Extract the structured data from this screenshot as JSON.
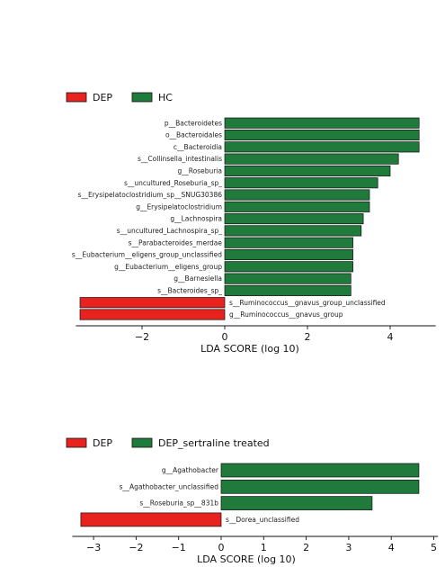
{
  "chart_data": [
    {
      "type": "bar",
      "orientation": "horizontal",
      "legend": [
        {
          "name": "DEP",
          "color": "#e8231f"
        },
        {
          "name": "HC",
          "color": "#1f7a3c"
        }
      ],
      "legend_position": "top-left",
      "xlabel": "LDA SCORE (log 10)",
      "xlim": [
        -3.6,
        5.1
      ],
      "xticks": [
        -2,
        0,
        2,
        4
      ],
      "xtick_labels": [
        "−2",
        "0",
        "2",
        "4"
      ],
      "grid": false,
      "bars": [
        {
          "label": "p__Bacteroidetes",
          "value": 4.7,
          "group": "HC"
        },
        {
          "label": "o__Bacteroidales",
          "value": 4.7,
          "group": "HC"
        },
        {
          "label": "c__Bacteroidia",
          "value": 4.7,
          "group": "HC"
        },
        {
          "label": "s__Collinsella_intestinalis",
          "value": 4.2,
          "group": "HC"
        },
        {
          "label": "g__Roseburia",
          "value": 4.0,
          "group": "HC"
        },
        {
          "label": "s__uncultured_Roseburia_sp_",
          "value": 3.7,
          "group": "HC"
        },
        {
          "label": "s__Erysipelatoclostridium_sp__SNUG30386",
          "value": 3.5,
          "group": "HC"
        },
        {
          "label": "g__Erysipelatoclostridium",
          "value": 3.5,
          "group": "HC"
        },
        {
          "label": "g__Lachnospira",
          "value": 3.35,
          "group": "HC"
        },
        {
          "label": "s__uncultured_Lachnospira_sp_",
          "value": 3.3,
          "group": "HC"
        },
        {
          "label": "s__Parabacteroides_merdae",
          "value": 3.1,
          "group": "HC"
        },
        {
          "label": "s__Eubacterium__eligens_group_unclassified",
          "value": 3.1,
          "group": "HC"
        },
        {
          "label": "g__Eubacterium__eligens_group",
          "value": 3.1,
          "group": "HC"
        },
        {
          "label": "g__Barnesiella",
          "value": 3.05,
          "group": "HC"
        },
        {
          "label": "s__Bacteroides_sp_",
          "value": 3.05,
          "group": "HC"
        },
        {
          "label": "s__Ruminococcus__gnavus_group_unclassified",
          "value": -3.5,
          "group": "DEP"
        },
        {
          "label": "g__Ruminococcus__gnavus_group",
          "value": -3.5,
          "group": "DEP"
        }
      ]
    },
    {
      "type": "bar",
      "orientation": "horizontal",
      "legend": [
        {
          "name": "DEP",
          "color": "#e8231f"
        },
        {
          "name": "DEP_sertraline treated",
          "color": "#1f7a3c"
        }
      ],
      "legend_position": "top-left",
      "xlabel": "LDA SCORE (log 10)",
      "xlim": [
        -3.5,
        5.1
      ],
      "xticks": [
        -3,
        -2,
        -1,
        0,
        1,
        2,
        3,
        4,
        5
      ],
      "xtick_labels": [
        "−3",
        "−2",
        "−1",
        "0",
        "1",
        "2",
        "3",
        "4",
        "5"
      ],
      "grid": false,
      "bars": [
        {
          "label": "g__Agathobacter",
          "value": 4.65,
          "group": "DEP_sertraline treated"
        },
        {
          "label": "s__Agathobacter_unclassified",
          "value": 4.65,
          "group": "DEP_sertraline treated"
        },
        {
          "label": "s__Roseburia_sp__831b",
          "value": 3.55,
          "group": "DEP_sertraline treated"
        },
        {
          "label": "s__Dorea_unclassified",
          "value": -3.3,
          "group": "DEP"
        }
      ]
    }
  ]
}
